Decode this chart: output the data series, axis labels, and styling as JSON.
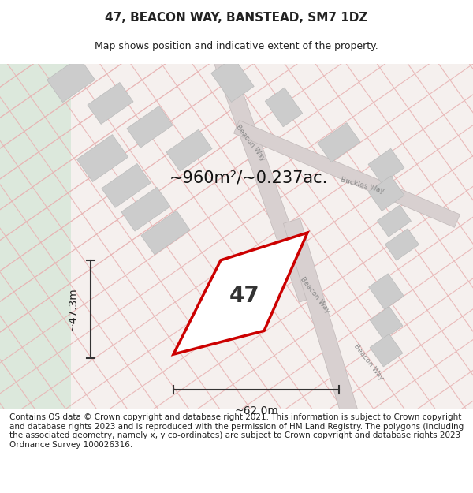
{
  "title": "47, BEACON WAY, BANSTEAD, SM7 1DZ",
  "subtitle": "Map shows position and indicative extent of the property.",
  "area_label": "~960m²/~0.237ac.",
  "property_number": "47",
  "dim_width": "~62.0m",
  "dim_height": "~47.3m",
  "background_map_color": "#f5f0f0",
  "road_color": "#d0d0d0",
  "road_line_color": "#e8c8c8",
  "building_color": "#cccccc",
  "property_outline_color": "#cc0000",
  "property_fill_color": "#ffffff",
  "dim_line_color": "#333333",
  "text_color": "#222222",
  "footer_text": "Contains OS data © Crown copyright and database right 2021. This information is subject to Crown copyright and database rights 2023 and is reproduced with the permission of HM Land Registry. The polygons (including the associated geometry, namely x, y co-ordinates) are subject to Crown copyright and database rights 2023 Ordnance Survey 100026316.",
  "title_fontsize": 11,
  "subtitle_fontsize": 9,
  "area_fontsize": 16,
  "property_num_fontsize": 18,
  "footer_fontsize": 7.5,
  "dim_fontsize": 10,
  "street_label_fontsize": 7,
  "left_panel_color": "#e8ede8",
  "map_bg": "#f7f3f3"
}
